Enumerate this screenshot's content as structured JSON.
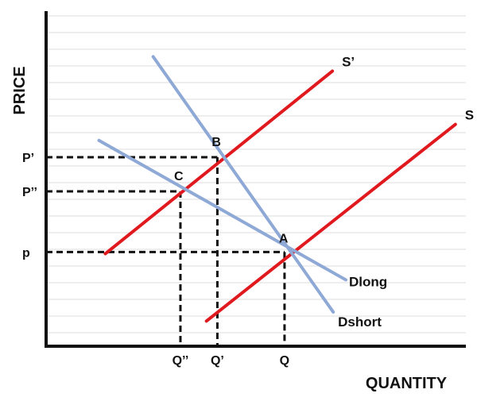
{
  "chart_data": {
    "type": "line",
    "xlabel": "QUANTITY",
    "ylabel": "PRICE",
    "xlim": [
      0,
      100
    ],
    "ylim": [
      0,
      100
    ],
    "grid": true,
    "grid_color": "#dcdcdc",
    "axis_color": "#111111",
    "series": [
      {
        "name": "S",
        "color": "#e0191e",
        "x": [
          38.2,
          97.5
        ],
        "y": [
          7.5,
          66.2
        ]
      },
      {
        "name": "S’",
        "color": "#e0191e",
        "x": [
          14.1,
          68.2
        ],
        "y": [
          27.6,
          82.1
        ]
      },
      {
        "name": "Dlong",
        "color": "#8fa9d6",
        "x": [
          12.6,
          71.4
        ],
        "y": [
          61.4,
          19.8
        ]
      },
      {
        "name": "Dshort",
        "color": "#8fa9d6",
        "x": [
          25.5,
          68.4
        ],
        "y": [
          86.4,
          10.2
        ]
      }
    ],
    "points": [
      {
        "name": "A",
        "x": 56.8,
        "y": 28.1
      },
      {
        "name": "B",
        "x": 40.8,
        "y": 56.4
      },
      {
        "name": "C",
        "x": 32.0,
        "y": 46.2
      }
    ],
    "guides": [
      {
        "name": "p",
        "x": 56.8,
        "y": 28.1
      },
      {
        "name": "P’",
        "x": 40.8,
        "y": 56.4
      },
      {
        "name": "P’’",
        "x": 32.0,
        "y": 46.2
      }
    ],
    "y_ticks": [
      {
        "label": "P’",
        "value": 56.4
      },
      {
        "label": "P’’",
        "value": 46.2
      },
      {
        "label": "p",
        "value": 28.1
      }
    ],
    "x_ticks": [
      {
        "label": "Q’’",
        "value": 32.0
      },
      {
        "label": "Q’",
        "value": 40.8
      },
      {
        "label": "Q",
        "value": 56.8
      }
    ]
  }
}
